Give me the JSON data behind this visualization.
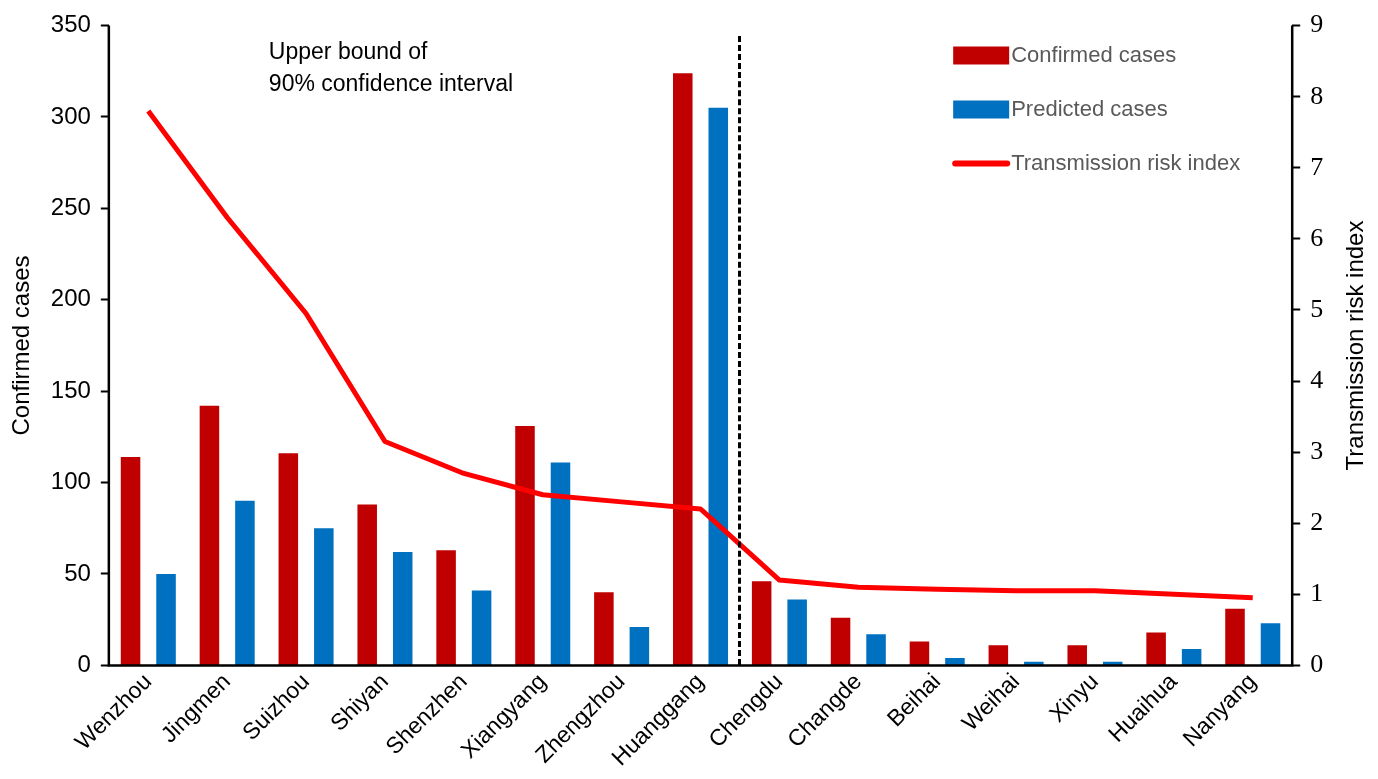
{
  "chart_data": {
    "type": "bar",
    "ylabel": "Confirmed cases",
    "y2label": "Transmission risk index",
    "categories": [
      "Wenzhou",
      "Jingmen",
      "Suizhou",
      "Shiyan",
      "Shenzhen",
      "Xiangyang",
      "Zhengzhou",
      "Huanggang",
      "Chengdu",
      "Changde",
      "Beihai",
      "Weihai",
      "Xinyu",
      "Huaihua",
      "Nanyang"
    ],
    "series": [
      {
        "name": "Confirmed cases",
        "color": "#c00000",
        "values": [
          114,
          142,
          116,
          88,
          63,
          131,
          40,
          324,
          46,
          26,
          13,
          11,
          11,
          18,
          31
        ]
      },
      {
        "name": "Predicted cases",
        "color": "#0070c0",
        "values": [
          50,
          90,
          75,
          62,
          41,
          111,
          21,
          305,
          36,
          17,
          4,
          2,
          2,
          9,
          23
        ]
      },
      {
        "name": "Transmission risk index",
        "type": "line",
        "axis": "y2",
        "color": "#ff0000",
        "values": [
          7.8,
          6.3,
          4.95,
          3.15,
          2.7,
          2.4,
          2.3,
          2.2,
          1.2,
          1.1,
          1.07,
          1.05,
          1.05,
          1.0,
          0.95
        ]
      }
    ],
    "ylim": [
      0,
      350
    ],
    "yticks": [
      0,
      50,
      100,
      150,
      200,
      250,
      300,
      350
    ],
    "y2lim": [
      0,
      9
    ],
    "y2ticks": [
      0,
      1,
      2,
      3,
      4,
      5,
      6,
      7,
      8,
      9
    ],
    "annotations": [
      "Upper bound of",
      "90% confidence interval"
    ],
    "grid": false,
    "legend": "top right",
    "marker": "none"
  }
}
